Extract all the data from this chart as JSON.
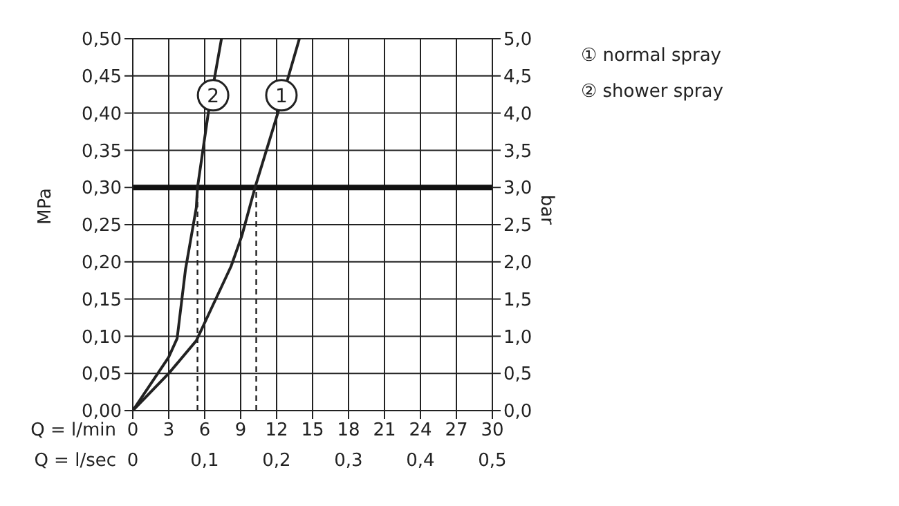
{
  "chart_data": {
    "type": "line",
    "xlabel": "Q = l/min",
    "x2label": "Q = l/sec",
    "ylabel": "MPa",
    "y2label": "bar",
    "xlim": [
      0,
      30
    ],
    "xticks": [
      0,
      3,
      6,
      9,
      12,
      15,
      18,
      21,
      24,
      27,
      30
    ],
    "x2lim": [
      0,
      0.5
    ],
    "x2ticks": [
      0,
      {
        "value": 0.1,
        "label": "0,1"
      },
      {
        "value": 0.2,
        "label": "0,2"
      },
      {
        "value": 0.3,
        "label": "0,3"
      },
      {
        "value": 0.4,
        "label": "0,4"
      },
      {
        "value": 0.5,
        "label": "0,5"
      }
    ],
    "ylim": [
      0,
      0.5
    ],
    "yticks": [
      {
        "value": 0,
        "label": "0,00"
      },
      {
        "value": 0.05,
        "label": "0,05"
      },
      {
        "value": 0.1,
        "label": "0,10"
      },
      {
        "value": 0.15,
        "label": "0,15"
      },
      {
        "value": 0.2,
        "label": "0,20"
      },
      {
        "value": 0.25,
        "label": "0,25"
      },
      {
        "value": 0.3,
        "label": "0,30"
      },
      {
        "value": 0.35,
        "label": "0,35"
      },
      {
        "value": 0.4,
        "label": "0,40"
      },
      {
        "value": 0.45,
        "label": "0,45"
      },
      {
        "value": 0.5,
        "label": "0,50"
      }
    ],
    "y2lim": [
      0,
      5
    ],
    "y2ticks": [
      {
        "value": 0,
        "label": "0,0"
      },
      {
        "value": 0.5,
        "label": "0,5"
      },
      {
        "value": 1,
        "label": "1,0"
      },
      {
        "value": 1.5,
        "label": "1,5"
      },
      {
        "value": 2,
        "label": "2,0"
      },
      {
        "value": 2.5,
        "label": "2,5"
      },
      {
        "value": 3,
        "label": "3,0"
      },
      {
        "value": 3.5,
        "label": "3,5"
      },
      {
        "value": 4,
        "label": "4,0"
      },
      {
        "value": 4.5,
        "label": "4,5"
      },
      {
        "value": 5,
        "label": "5,0"
      }
    ],
    "series": [
      {
        "name": "① normal spray",
        "color": "#222222",
        "x": [
          0,
          3,
          5.3,
          6.2,
          8.2,
          9.1,
          10.2,
          12.1,
          13.9
        ],
        "values": [
          0,
          0.05,
          0.094,
          0.125,
          0.194,
          0.235,
          0.3,
          0.4,
          0.5
        ]
      },
      {
        "name": "② shower spray",
        "color": "#222222",
        "x": [
          0,
          3,
          3.7,
          4.4,
          5.3,
          5.4,
          6.3,
          7.4
        ],
        "values": [
          0,
          0.072,
          0.097,
          0.19,
          0.273,
          0.3,
          0.4,
          0.5
        ]
      }
    ],
    "ref_lines": [
      {
        "axis": "y",
        "value": 0.3,
        "color": "#111111",
        "line_style": "solid"
      },
      {
        "axis": "x",
        "value": 5.4,
        "color": "#222222",
        "line_style": "dashed"
      },
      {
        "axis": "x",
        "value": 10.3,
        "color": "#222222",
        "line_style": "dashed"
      }
    ],
    "annotations": [
      {
        "text": "1",
        "x": 12.4,
        "y": 0.424
      },
      {
        "text": "2",
        "x": 6.7,
        "y": 0.424
      }
    ],
    "grid": true,
    "legend": "top right",
    "marker": "none",
    "line_style": "solid"
  }
}
